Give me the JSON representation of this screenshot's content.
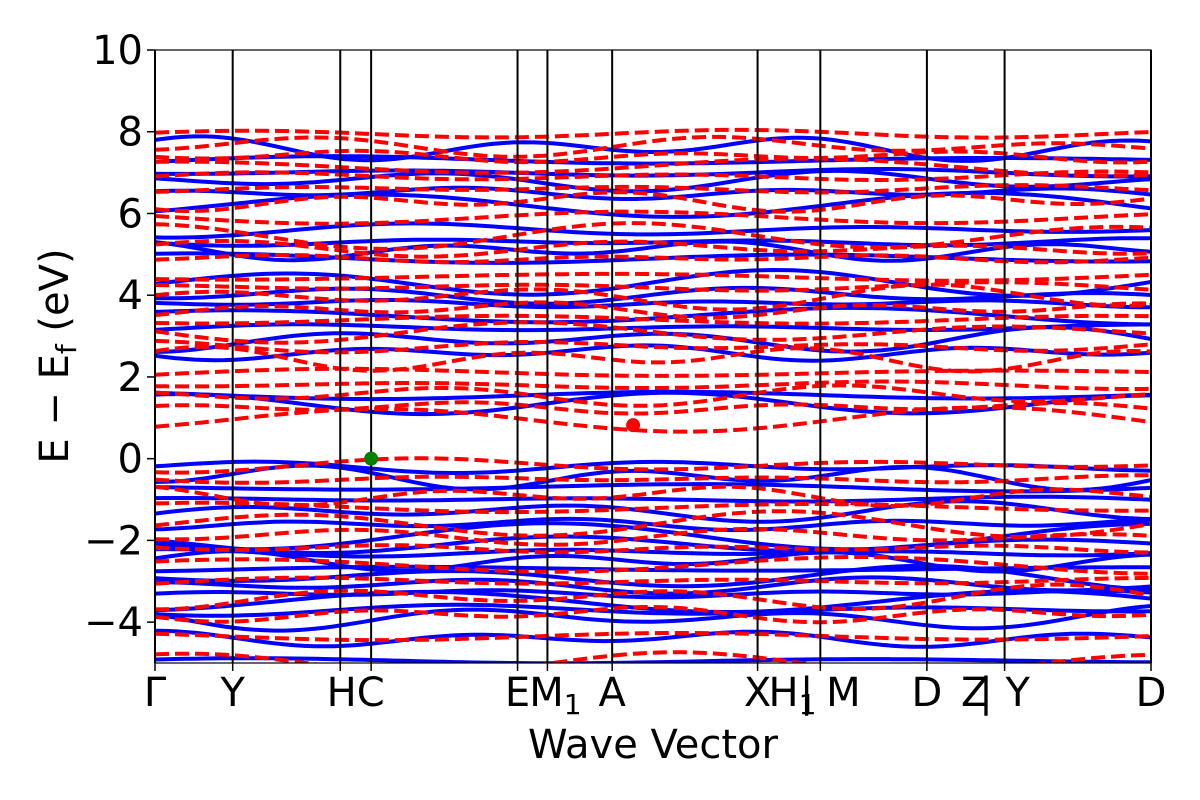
{
  "chart_data": {
    "type": "line",
    "title": "",
    "xlabel": "Wave Vector",
    "ylabel": "E − E",
    "ylabel_subscript": "f",
    "ylabel_unit": " (eV)",
    "ylim": [
      -5,
      10
    ],
    "yticks": [
      -4,
      -2,
      0,
      2,
      4,
      6,
      8,
      10
    ],
    "ytick_labels": [
      "−4",
      "−2",
      "0",
      "2",
      "4",
      "6",
      "8",
      "10"
    ],
    "xlim": [
      0,
      100
    ],
    "kpoint_lines": [
      0,
      7.8,
      18.6,
      21.7,
      36.4,
      39.4,
      45.9,
      60.5,
      66.8,
      77.5,
      85.3,
      100
    ],
    "kpoint_labels": [
      {
        "x": 0,
        "label": "Γ"
      },
      {
        "x": 7.8,
        "label": "Y"
      },
      {
        "x": 20.15,
        "label": "HC"
      },
      {
        "x": 36.4,
        "label": "E"
      },
      {
        "x": 40.2,
        "label": "M",
        "sub": "1"
      },
      {
        "x": 45.9,
        "label": "A"
      },
      {
        "x": 60.5,
        "label": "X"
      },
      {
        "x": 64.0,
        "label": "H",
        "sub": "1"
      },
      {
        "x": 67.8,
        "label": "| M"
      },
      {
        "x": 77.5,
        "label": "D"
      },
      {
        "x": 82.3,
        "label": "Z"
      },
      {
        "x": 85.3,
        "label": "| Y"
      },
      {
        "x": 100,
        "label": "D"
      }
    ],
    "series": [
      {
        "style": "solid",
        "color": "#0000ff",
        "bands": [
          -4.95,
          -4.4,
          -3.9,
          -3.7,
          -3.5,
          -3.3,
          -3.1,
          -2.9,
          -2.7,
          -2.5,
          -2.3,
          -2.1,
          -1.9,
          -1.6,
          -1.3,
          -1.0,
          -0.7,
          -0.45,
          -0.2,
          1.35,
          1.55,
          2.6,
          2.9,
          3.2,
          3.5,
          3.8,
          4.0,
          4.3,
          4.9,
          5.1,
          5.3,
          5.6,
          6.2,
          6.5,
          6.8,
          7.0,
          7.3,
          7.6
        ]
      },
      {
        "style": "dashed",
        "color": "#ff0000",
        "bands": [
          -5.0,
          -4.35,
          -3.8,
          -3.4,
          -3.0,
          -2.6,
          -2.2,
          -1.9,
          -1.6,
          -1.2,
          -0.9,
          -0.5,
          -0.15,
          0.95,
          1.25,
          1.55,
          1.8,
          2.1,
          2.45,
          2.75,
          3.1,
          3.4,
          3.65,
          3.95,
          4.2,
          4.45,
          4.9,
          5.15,
          5.45,
          5.9,
          6.3,
          6.6,
          6.9,
          7.15,
          7.4,
          7.65,
          7.95
        ]
      }
    ],
    "markers": [
      {
        "x": 21.7,
        "y": 0.0,
        "color": "#008000"
      },
      {
        "x": 48.0,
        "y": 0.82,
        "color": "#ff0000"
      }
    ]
  }
}
